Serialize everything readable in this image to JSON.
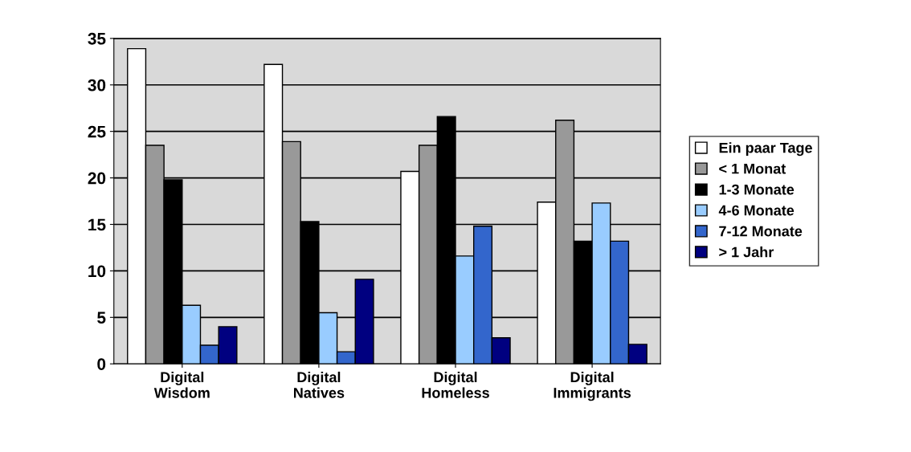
{
  "chart_data": {
    "type": "bar",
    "categories": [
      "Digital\nWisdom",
      "Digital\nNatives",
      "Digital\nHomeless",
      "Digital\nImmigrants"
    ],
    "series": [
      {
        "name": "Ein paar Tage",
        "color": "#ffffff",
        "values": [
          33.9,
          32.2,
          20.7,
          17.4
        ]
      },
      {
        "name": "< 1 Monat",
        "color": "#999999",
        "values": [
          23.5,
          23.9,
          23.5,
          26.2
        ]
      },
      {
        "name": "1-3 Monate",
        "color": "#000000",
        "values": [
          19.8,
          15.3,
          26.6,
          13.2
        ]
      },
      {
        "name": "4-6 Monate",
        "color": "#99ccff",
        "values": [
          6.3,
          5.5,
          11.6,
          17.3
        ]
      },
      {
        "name": "7-12 Monate",
        "color": "#3366cc",
        "values": [
          2.0,
          1.3,
          14.8,
          13.2
        ]
      },
      {
        "name": "> 1 Jahr",
        "color": "#000080",
        "values": [
          4.0,
          9.1,
          2.8,
          2.1
        ]
      }
    ],
    "ylim": [
      0,
      35
    ],
    "yticks": [
      0,
      5,
      10,
      15,
      20,
      25,
      30,
      35
    ],
    "grid": "y",
    "legend": "right"
  }
}
